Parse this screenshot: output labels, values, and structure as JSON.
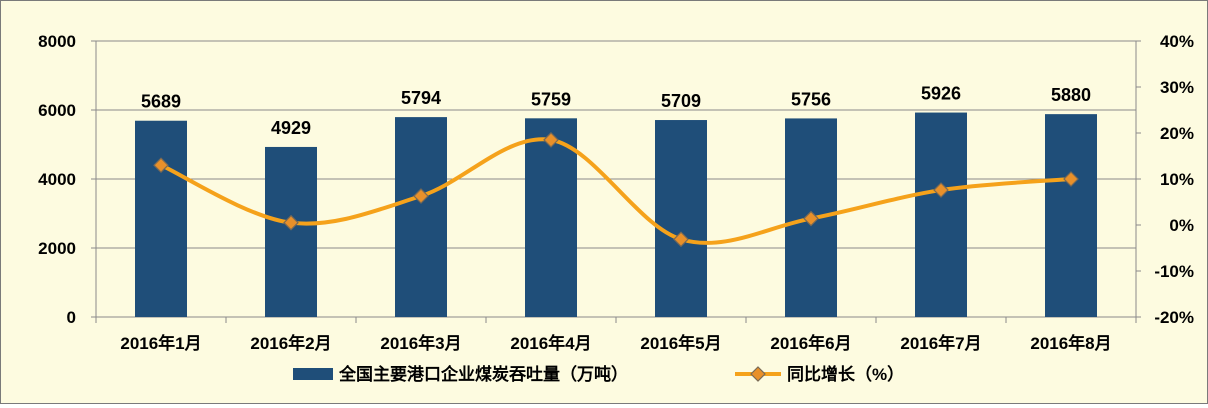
{
  "chart_data": {
    "type": "bar",
    "categories": [
      "2016年1月",
      "2016年2月",
      "2016年3月",
      "2016年4月",
      "2016年5月",
      "2016年6月",
      "2016年7月",
      "2016年8月"
    ],
    "series": [
      {
        "name": "全国主要港口企业煤炭吞吐量（万吨）",
        "type": "bar",
        "axis": "left",
        "color": "#1f4e79",
        "values": [
          5689,
          4929,
          5794,
          5759,
          5709,
          5756,
          5926,
          5880
        ]
      },
      {
        "name": "同比增长（%）",
        "type": "line",
        "axis": "right",
        "color": "#f5a21b",
        "marker_color": "#e8902a",
        "values": [
          13,
          0.5,
          6.3,
          18.5,
          -3.1,
          1.4,
          7.6,
          10
        ]
      }
    ],
    "y_left": {
      "ylim": [
        0,
        8000
      ],
      "ticks": [
        "0",
        "2000",
        "4000",
        "6000",
        "8000"
      ],
      "tick_values": [
        0,
        2000,
        4000,
        6000,
        8000
      ]
    },
    "y_right": {
      "ylim": [
        -20,
        40
      ],
      "ticks": [
        "-20%",
        "-10%",
        "0%",
        "10%",
        "20%",
        "30%",
        "40%"
      ],
      "tick_values": [
        -20,
        -10,
        0,
        10,
        20,
        30,
        40
      ]
    },
    "grid": true,
    "legend": "bottom",
    "plot_bg": "#fdfbe0",
    "grid_color": "#8a8a8a"
  }
}
